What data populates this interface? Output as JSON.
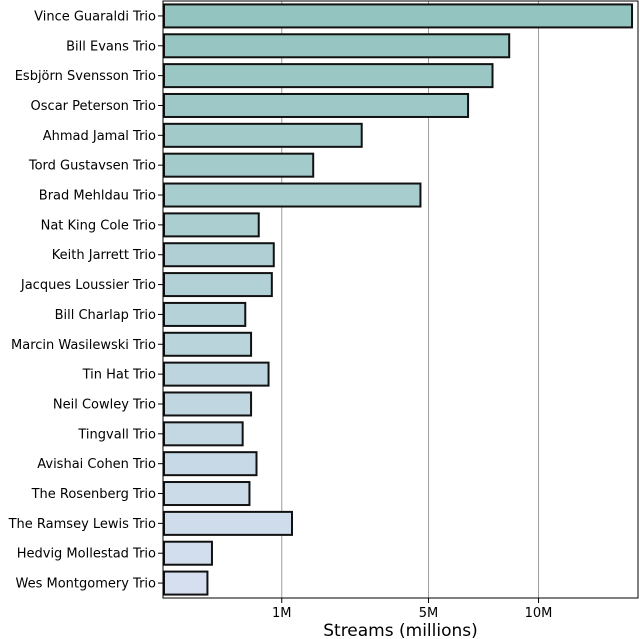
{
  "chart_data": {
    "type": "bar",
    "orientation": "horizontal",
    "xlabel": "Streams (millions)",
    "ylabel": "",
    "title": "",
    "x_scale": "sqrt",
    "xlim": [
      0,
      16
    ],
    "xticks": [
      {
        "value": 1,
        "label": "1M"
      },
      {
        "value": 5,
        "label": "5M"
      },
      {
        "value": 10,
        "label": "10M"
      }
    ],
    "grid": "vertical",
    "colors": {
      "start": "#93c4bf",
      "end": "#d5dff0",
      "edge": "#111111",
      "grid": "#9e9e9e"
    },
    "categories": [
      "Vince Guaraldi Trio",
      "Bill Evans Trio",
      "Esbjörn Svensson Trio",
      "Oscar Peterson Trio",
      "Ahmad Jamal Trio",
      "Tord Gustavsen Trio",
      "Brad Mehldau Trio",
      "Nat King Cole Trio",
      "Keith Jarrett Trio",
      "Jacques Loussier Trio",
      "Bill Charlap Trio",
      "Marcin Wasilewski Trio",
      "Tin Hat Trio",
      "Neil Cowley Trio",
      "Tingvall Trio",
      "Avishai Cohen Trio",
      "The Rosenberg Trio",
      "The Ramsey Lewis Trio",
      "Hedvig Mollestad Trio",
      "Wes Montgomery Trio"
    ],
    "values": [
      15.6,
      8.5,
      7.7,
      6.6,
      2.8,
      1.6,
      4.7,
      0.65,
      0.87,
      0.84,
      0.48,
      0.55,
      0.79,
      0.55,
      0.45,
      0.62,
      0.53,
      1.18,
      0.17,
      0.14
    ]
  }
}
